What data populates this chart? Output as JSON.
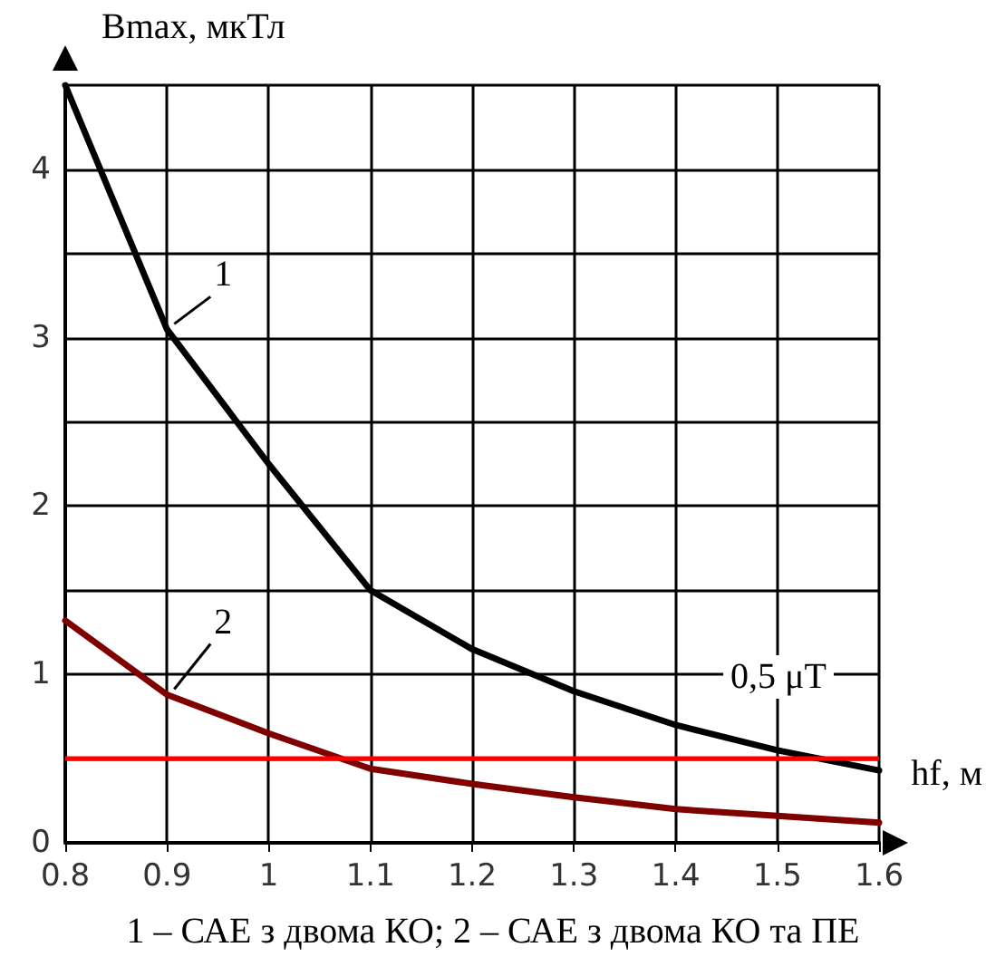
{
  "chart_data": {
    "type": "line",
    "xlabel": "hf, м",
    "ylabel": "Bmax, мкТл",
    "annotations": [
      "1 – САЕ з двома КО; 2 – САЕ з двома КО та ПЕ"
    ],
    "x": [
      0.8,
      0.9,
      1.0,
      1.1,
      1.2,
      1.3,
      1.4,
      1.5,
      1.6
    ],
    "series": [
      {
        "name": "1",
        "color": "#000000",
        "values": [
          4.5,
          3.05,
          2.25,
          1.5,
          1.15,
          0.9,
          0.7,
          0.55,
          0.43
        ]
      },
      {
        "name": "2",
        "color": "#800000",
        "values": [
          1.32,
          0.88,
          0.65,
          0.44,
          0.35,
          0.27,
          0.2,
          0.16,
          0.12
        ]
      }
    ],
    "xlim": [
      0.8,
      1.6
    ],
    "xticks": [
      0.8,
      0.9,
      1,
      1.1,
      1.2,
      1.3,
      1.4,
      1.5,
      1.6
    ],
    "ylim": [
      0,
      4.5
    ],
    "yticks": [
      0,
      {
        "value": 0.5,
        "label": null
      },
      1,
      {
        "value": 1.5,
        "label": null
      },
      2,
      {
        "value": 2.5,
        "label": null
      },
      3,
      {
        "value": 3.5,
        "label": null
      },
      4,
      {
        "value": 4.5,
        "label": null
      }
    ],
    "grid": true,
    "legend": false,
    "line_style": "solid",
    "ref_lines": [
      {
        "axis": "y",
        "value": 0.5,
        "label": "0,5 μT",
        "color": "#ff0000"
      }
    ]
  }
}
